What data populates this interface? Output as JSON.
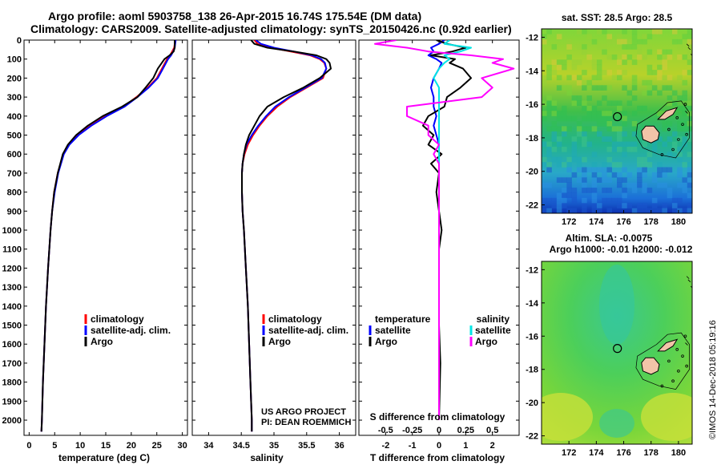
{
  "header": {
    "line1": "Argo profile: aoml 5903758_138 26-Apr-2015 16.74S 175.54E (DM data)",
    "line2": "Climatology: CARS2009. Satellite-adjusted climatology: synTS_20150426.nc (0.92d earlier)"
  },
  "footer": {
    "credit1": "US ARGO PROJECT",
    "credit2": "PI: DEAN ROEMMICH",
    "stamp": "©IMOS 14-Dec-2018 05:19:16"
  },
  "colors": {
    "climatology": "#ff0000",
    "satellite": "#0000ff",
    "argo": "#000000",
    "sat_salt": "#00e5e5",
    "argo_salt": "#ff00ff"
  },
  "chart_data": [
    {
      "type": "line",
      "panel": "temperature",
      "xlabel": "temperature (deg C)",
      "ylabel": "",
      "xlim": [
        -1,
        31
      ],
      "ylim": [
        2080,
        0
      ],
      "xticks": [
        "0",
        "5",
        "10",
        "15",
        "20",
        "25",
        "30"
      ],
      "yticks": [
        "0",
        "100",
        "200",
        "300",
        "400",
        "500",
        "600",
        "700",
        "800",
        "900",
        "1000",
        "1100",
        "1200",
        "1300",
        "1400",
        "1500",
        "1600",
        "1700",
        "1800",
        "1900",
        "2000"
      ],
      "legend": [
        "climatology",
        "satellite-adj. clim.",
        "Argo"
      ],
      "depth": [
        0,
        20,
        40,
        60,
        80,
        100,
        150,
        200,
        250,
        300,
        350,
        400,
        450,
        500,
        550,
        600,
        700,
        800,
        900,
        1000,
        1200,
        1400,
        1600,
        1800,
        2000,
        2060
      ],
      "series": [
        {
          "name": "climatology",
          "values": [
            28.6,
            28.5,
            28.4,
            28.0,
            27.6,
            27.0,
            26.0,
            25.0,
            23.2,
            21.0,
            18.5,
            15.0,
            12.0,
            9.5,
            7.8,
            6.7,
            5.6,
            4.9,
            4.5,
            4.2,
            3.7,
            3.3,
            3.0,
            2.7,
            2.5,
            2.4
          ]
        },
        {
          "name": "satellite-adj. clim.",
          "values": [
            28.7,
            28.6,
            28.5,
            28.2,
            27.8,
            27.2,
            26.2,
            25.2,
            23.4,
            21.2,
            18.7,
            15.2,
            12.2,
            9.7,
            7.9,
            6.8,
            5.7,
            5.0,
            4.5,
            4.2,
            3.7,
            3.3,
            3.0,
            2.7,
            2.5,
            2.4
          ]
        },
        {
          "name": "Argo",
          "values": [
            28.5,
            28.5,
            28.5,
            28.3,
            27.5,
            26.5,
            25.2,
            24.3,
            22.8,
            21.2,
            18.2,
            14.4,
            11.5,
            9.2,
            7.6,
            6.6,
            5.6,
            4.9,
            4.5,
            4.2,
            3.7,
            3.3,
            3.0,
            2.7,
            2.5,
            2.4
          ]
        }
      ]
    },
    {
      "type": "line",
      "panel": "salinity",
      "xlabel": "salinity",
      "xlim": [
        33.75,
        36.25
      ],
      "ylim": [
        2080,
        0
      ],
      "xticks": [
        "34",
        "34.5",
        "35",
        "35.5",
        "36"
      ],
      "legend": [
        "climatology",
        "satellite-adj. clim.",
        "Argo"
      ],
      "depth": [
        0,
        20,
        40,
        60,
        80,
        100,
        120,
        150,
        200,
        250,
        300,
        350,
        400,
        450,
        500,
        550,
        600,
        650,
        700,
        800,
        900,
        1000,
        1200,
        1400,
        1600,
        1800,
        2000,
        2060
      ],
      "series": [
        {
          "name": "climatology",
          "values": [
            34.7,
            34.75,
            34.95,
            35.25,
            35.55,
            35.7,
            35.77,
            35.8,
            35.75,
            35.5,
            35.25,
            35.05,
            34.9,
            34.78,
            34.68,
            34.6,
            34.55,
            34.52,
            34.51,
            34.51,
            34.52,
            34.54,
            34.57,
            34.6,
            34.62,
            34.64,
            34.66,
            34.66
          ]
        },
        {
          "name": "satellite-adj. clim.",
          "values": [
            34.72,
            34.8,
            35.0,
            35.3,
            35.58,
            35.72,
            35.78,
            35.8,
            35.73,
            35.48,
            35.23,
            35.02,
            34.88,
            34.76,
            34.66,
            34.58,
            34.54,
            34.52,
            34.51,
            34.51,
            34.52,
            34.54,
            34.57,
            34.6,
            34.62,
            34.64,
            34.66,
            34.66
          ]
        },
        {
          "name": "Argo",
          "values": [
            34.65,
            34.7,
            34.9,
            35.3,
            35.65,
            35.8,
            35.85,
            35.87,
            35.7,
            35.45,
            35.15,
            34.9,
            34.78,
            34.7,
            34.62,
            34.57,
            34.54,
            34.52,
            34.51,
            34.51,
            34.52,
            34.54,
            34.57,
            34.6,
            34.62,
            34.64,
            34.66,
            34.66
          ]
        }
      ]
    },
    {
      "type": "line",
      "panel": "difference",
      "xlabel": "T difference from climatology",
      "xlabel2": "S difference from climatology",
      "xlim": [
        -3,
        3
      ],
      "ylim": [
        2080,
        0
      ],
      "xticks": [
        "-2",
        "-1",
        "0",
        "1",
        "2"
      ],
      "xticks_s": [
        "-0.5",
        "-0.25",
        "0",
        "0.25",
        "0.5"
      ],
      "legend_headers": [
        "temperature",
        "salinity"
      ],
      "legend_left": [
        "satellite",
        "Argo"
      ],
      "legend_right": [
        "satellite",
        "Argo"
      ],
      "depth": [
        0,
        20,
        40,
        60,
        80,
        100,
        120,
        150,
        200,
        250,
        300,
        350,
        400,
        450,
        500,
        550,
        600,
        650,
        700,
        800,
        900,
        1000,
        1100,
        1200,
        1500,
        1700,
        2000
      ],
      "series": [
        {
          "name": "temperature satellite",
          "values": [
            0.2,
            0.0,
            -0.3,
            -0.2,
            -0.4,
            -0.1,
            0.1,
            0.0,
            -0.2,
            -0.3,
            -0.2,
            -0.2,
            -0.1,
            -0.2,
            -0.1,
            0.0,
            0.0,
            0.0,
            0.0,
            0.0,
            0.0,
            0.0,
            0.0,
            0.0,
            0.0,
            0.0,
            0.0
          ]
        },
        {
          "name": "temperature Argo",
          "values": [
            -0.1,
            0.3,
            1.0,
            0.5,
            -0.3,
            0.6,
            0.4,
            0.9,
            1.2,
            0.8,
            0.3,
            0.2,
            -0.4,
            -0.6,
            -0.2,
            -0.4,
            0.1,
            -0.3,
            0.0,
            -0.1,
            0.0,
            0.1,
            0.0,
            0.0,
            0.0,
            0.05,
            0.0
          ]
        },
        {
          "name": "salinity satellite",
          "values": [
            0.1,
            0.05,
            0.3,
            0.2,
            0.05,
            0.1,
            0.05,
            0.0,
            -0.05,
            0.0,
            0.0,
            0.0,
            0.0,
            0.0,
            0.0,
            0.0,
            0.0,
            0.0,
            0.0,
            0.0,
            0.0,
            0.0,
            0.0,
            0.0,
            0.0,
            0.0,
            0.0
          ]
        },
        {
          "name": "salinity Argo",
          "values": [
            -0.4,
            -0.6,
            -0.3,
            -0.1,
            0.3,
            0.6,
            0.5,
            0.7,
            0.4,
            0.5,
            0.4,
            -0.3,
            -0.3,
            -0.1,
            -0.1,
            0.0,
            -0.05,
            0.0,
            0.0,
            0.0,
            0.0,
            0.0,
            0.0,
            0.0,
            0.0,
            0.0,
            0.0
          ]
        }
      ]
    },
    {
      "type": "heatmap",
      "panel": "sst-map",
      "title": "sat. SST: 28.5 Argo: 28.5",
      "xlim": [
        170,
        181
      ],
      "ylim": [
        -22.5,
        -11.5
      ],
      "xticks": [
        "172",
        "174",
        "176",
        "178",
        "180"
      ],
      "yticks": [
        "-12",
        "-14",
        "-16",
        "-18",
        "-20",
        "-22"
      ],
      "marker": [
        175.54,
        -16.74
      ]
    },
    {
      "type": "heatmap",
      "panel": "sla-map",
      "title": "Altim. SLA: -0.0075",
      "subtitle": "Argo h1000: -0.01 h2000: -0.012",
      "xlim": [
        170,
        181
      ],
      "ylim": [
        -22.5,
        -11.5
      ],
      "xticks": [
        "172",
        "174",
        "176",
        "178",
        "180"
      ],
      "yticks": [
        "-12",
        "-14",
        "-16",
        "-18",
        "-20",
        "-22"
      ],
      "marker": [
        175.54,
        -16.74
      ]
    }
  ]
}
